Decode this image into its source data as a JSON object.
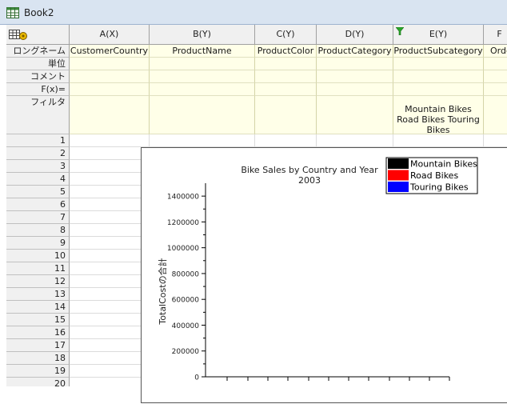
{
  "window": {
    "title": "Book2",
    "icon": "spreadsheet-icon"
  },
  "columns": [
    {
      "header": "A(X)",
      "long_name": "CustomerCountry",
      "filter": ""
    },
    {
      "header": "B(Y)",
      "long_name": "ProductName",
      "filter": ""
    },
    {
      "header": "C(Y)",
      "long_name": "ProductColor",
      "filter": ""
    },
    {
      "header": "D(Y)",
      "long_name": "ProductCategory",
      "filter": ""
    },
    {
      "header": "E(Y)",
      "long_name": "ProductSubcategory",
      "filter": "Mountain Bikes Road Bikes Touring Bikes",
      "filter_icon": "funnel-filter-icon"
    },
    {
      "header": "F",
      "long_name": "Orde",
      "filter": ""
    }
  ],
  "row_labels": {
    "long_name": "ロングネーム",
    "units": "単位",
    "comment": "コメント",
    "fx": "F(x)=",
    "filter": "フィルタ"
  },
  "corner_icon": "sheet-properties-icon",
  "rows": [
    "1",
    "2",
    "3",
    "4",
    "5",
    "6",
    "7",
    "8",
    "9",
    "10",
    "11",
    "12",
    "13",
    "14",
    "15",
    "16",
    "17",
    "18",
    "19",
    "20"
  ],
  "colors": {
    "mountain": "#000000",
    "road": "#ff0000",
    "touring": "#0000ff"
  },
  "chart_data": {
    "type": "bar",
    "title": "Bike Sales by Country and Year",
    "subtitle": "2003",
    "ylabel": "TotalCostの合計",
    "ylim": [
      0,
      1500000
    ],
    "yticks": [
      0,
      200000,
      400000,
      600000,
      800000,
      1000000,
      1200000,
      1400000
    ],
    "ytick_labels": [
      "0",
      "200000",
      "400000",
      "600000",
      "800000",
      "1000000",
      "1200000",
      "1400000"
    ],
    "legend_position": "top-right",
    "series": [
      {
        "name": "Mountain Bikes",
        "color": "#000000"
      },
      {
        "name": "Road Bikes",
        "color": "#ff0000"
      },
      {
        "name": "Touring Bikes",
        "color": "#0000ff"
      }
    ]
  }
}
